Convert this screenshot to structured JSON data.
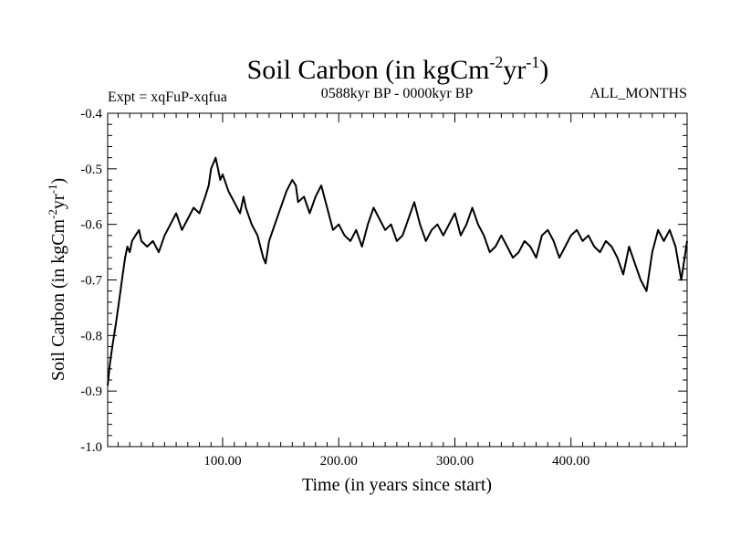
{
  "chart_data": {
    "type": "line",
    "title": "Soil Carbon (in kgCm",
    "title_sup1": "-2",
    "title_mid": "yr",
    "title_sup2": "-1",
    "title_end": ")",
    "expt_label": "Expt = xqFuP-xqfua",
    "period_label": "0588kyr BP - 0000kyr BP",
    "months_label": "ALL_MONTHS",
    "xlabel": "Time (in years since start)",
    "ylabel_main": "Soil Carbon (in kgCm",
    "ylabel_sup1": "-2",
    "ylabel_mid": "yr",
    "ylabel_sup2": "-1",
    "ylabel_end": ")",
    "xlim": [
      1,
      500
    ],
    "ylim": [
      -1.0,
      -0.4
    ],
    "x_ticks": [
      100,
      200,
      300,
      400
    ],
    "x_tick_labels": [
      "100.00",
      "200.00",
      "300.00",
      "400.00"
    ],
    "y_ticks": [
      -1.0,
      -0.9,
      -0.8,
      -0.7,
      -0.6,
      -0.5,
      -0.4
    ],
    "y_tick_labels": [
      "-1.0",
      "-0.9",
      "-0.8",
      "-0.7",
      "-0.6",
      "-0.5",
      "-0.4"
    ],
    "line_color": "#000000",
    "series": [
      {
        "name": "Soil Carbon",
        "x": [
          1,
          3,
          5,
          8,
          10,
          12,
          14,
          16,
          18,
          20,
          22,
          25,
          28,
          30,
          35,
          40,
          45,
          50,
          55,
          60,
          65,
          70,
          75,
          80,
          85,
          88,
          90,
          92,
          94,
          96,
          98,
          100,
          105,
          110,
          115,
          118,
          120,
          125,
          130,
          135,
          137,
          140,
          145,
          150,
          155,
          160,
          163,
          165,
          170,
          175,
          180,
          185,
          190,
          195,
          200,
          205,
          210,
          215,
          220,
          225,
          230,
          235,
          240,
          245,
          250,
          255,
          260,
          265,
          270,
          275,
          280,
          285,
          290,
          295,
          300,
          305,
          310,
          315,
          320,
          325,
          330,
          335,
          340,
          345,
          350,
          355,
          360,
          365,
          370,
          375,
          380,
          385,
          390,
          395,
          400,
          405,
          410,
          415,
          420,
          425,
          430,
          435,
          440,
          445,
          450,
          455,
          460,
          465,
          470,
          475,
          480,
          485,
          490,
          495,
          500
        ],
        "values": [
          -0.89,
          -0.85,
          -0.82,
          -0.78,
          -0.75,
          -0.72,
          -0.69,
          -0.66,
          -0.64,
          -0.65,
          -0.63,
          -0.62,
          -0.61,
          -0.63,
          -0.64,
          -0.63,
          -0.65,
          -0.62,
          -0.6,
          -0.58,
          -0.61,
          -0.59,
          -0.57,
          -0.58,
          -0.55,
          -0.53,
          -0.5,
          -0.49,
          -0.48,
          -0.5,
          -0.52,
          -0.51,
          -0.54,
          -0.56,
          -0.58,
          -0.55,
          -0.57,
          -0.6,
          -0.62,
          -0.66,
          -0.67,
          -0.63,
          -0.6,
          -0.57,
          -0.54,
          -0.52,
          -0.53,
          -0.56,
          -0.55,
          -0.58,
          -0.55,
          -0.53,
          -0.57,
          -0.61,
          -0.6,
          -0.62,
          -0.63,
          -0.61,
          -0.64,
          -0.6,
          -0.57,
          -0.59,
          -0.61,
          -0.6,
          -0.63,
          -0.62,
          -0.59,
          -0.56,
          -0.6,
          -0.63,
          -0.61,
          -0.6,
          -0.62,
          -0.6,
          -0.58,
          -0.62,
          -0.6,
          -0.57,
          -0.6,
          -0.62,
          -0.65,
          -0.64,
          -0.62,
          -0.64,
          -0.66,
          -0.65,
          -0.63,
          -0.64,
          -0.66,
          -0.62,
          -0.61,
          -0.63,
          -0.66,
          -0.64,
          -0.62,
          -0.61,
          -0.63,
          -0.62,
          -0.64,
          -0.65,
          -0.63,
          -0.64,
          -0.66,
          -0.69,
          -0.64,
          -0.67,
          -0.7,
          -0.72,
          -0.65,
          -0.61,
          -0.63,
          -0.61,
          -0.64,
          -0.7,
          -0.63
        ]
      }
    ]
  }
}
